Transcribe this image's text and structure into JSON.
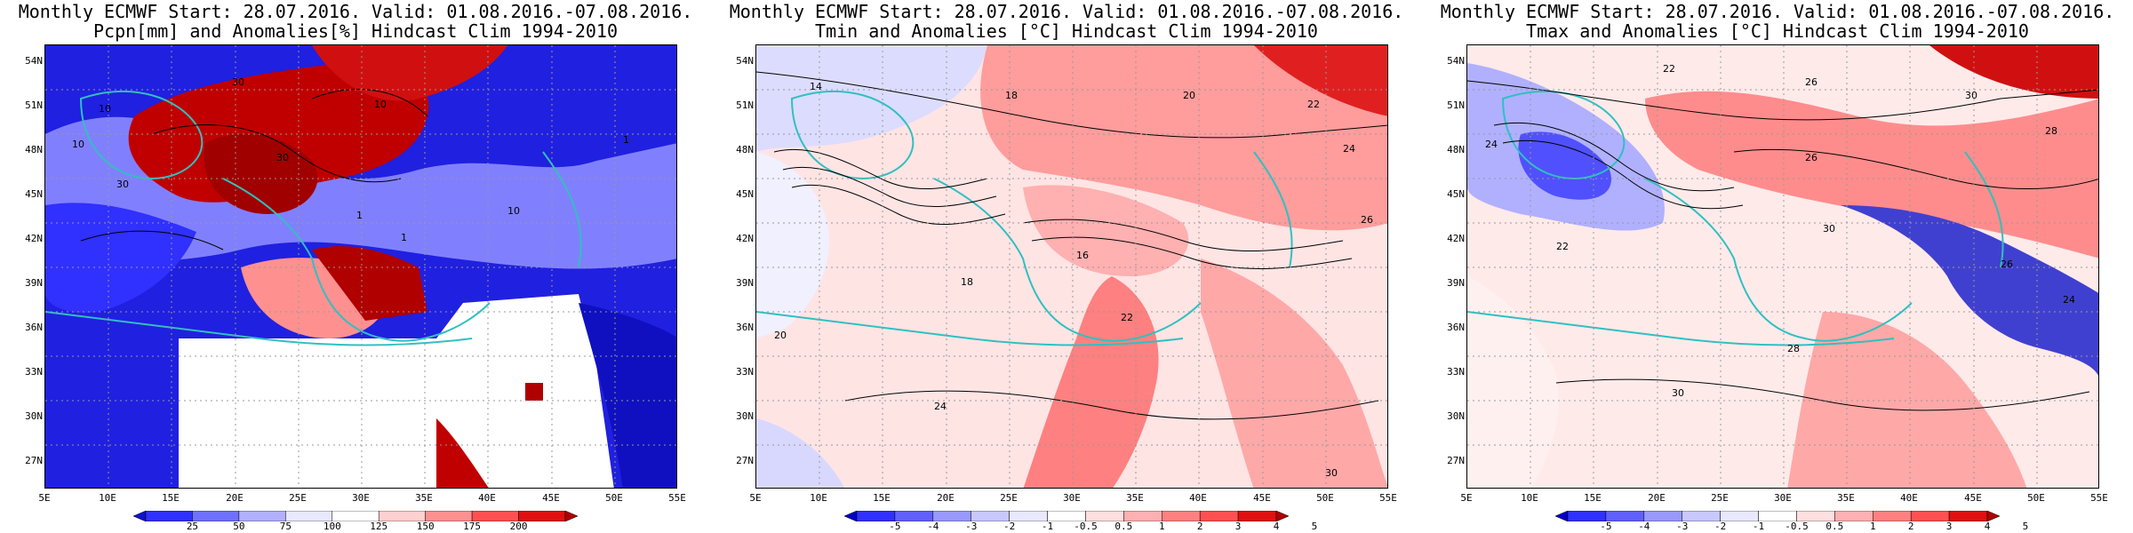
{
  "panels": [
    {
      "title_line1": "Monthly ECMWF Start: 28.07.2016. Valid: 01.08.2016.-07.08.2016.",
      "title_line2": "Pcpn[mm] and Anomalies[%] Hindcast Clim 1994-2010",
      "colorbar_ticks": [
        "25",
        "50",
        "75",
        "100",
        "125",
        "150",
        "175",
        "200"
      ],
      "colorbar_colors": [
        "#1010d0",
        "#3030ff",
        "#7070ff",
        "#b0b0ff",
        "#e8e8ff",
        "#ffffff",
        "#ffd0d0",
        "#ff9090",
        "#ff5050",
        "#e01010",
        "#b00000"
      ],
      "contour_labels": [
        "10",
        "30",
        "10",
        "1",
        "10",
        "30",
        "1",
        "10",
        "30",
        "1"
      ]
    },
    {
      "title_line1": "Monthly ECMWF Start: 28.07.2016. Valid: 01.08.2016.-07.08.2016.",
      "title_line2": "Tmin and Anomalies [°C] Hindcast Clim 1994-2010",
      "colorbar_ticks": [
        "-5",
        "-4",
        "-3",
        "-2",
        "-1",
        "-0.5",
        "0.5",
        "1",
        "2",
        "3",
        "4",
        "5"
      ],
      "colorbar_colors": [
        "#0000c8",
        "#3030ff",
        "#6060ff",
        "#9898ff",
        "#c8c8ff",
        "#e8e8ff",
        "#ffffff",
        "#ffe0e0",
        "#ffb0b0",
        "#ff8080",
        "#ff5050",
        "#e01010",
        "#b00000"
      ],
      "contour_labels": [
        "14",
        "18",
        "20",
        "22",
        "24",
        "16",
        "26",
        "22",
        "20",
        "18",
        "24",
        "30"
      ]
    },
    {
      "title_line1": "Monthly ECMWF Start: 28.07.2016. Valid: 01.08.2016.-07.08.2016.",
      "title_line2": "Tmax and Anomalies [°C] Hindcast Clim 1994-2010",
      "colorbar_ticks": [
        "-5",
        "-4",
        "-3",
        "-2",
        "-1",
        "-0.5",
        "0.5",
        "1",
        "2",
        "3",
        "4",
        "5"
      ],
      "colorbar_colors": [
        "#0000c8",
        "#3030ff",
        "#6060ff",
        "#9898ff",
        "#c8c8ff",
        "#e8e8ff",
        "#ffffff",
        "#ffe0e0",
        "#ffb0b0",
        "#ff8080",
        "#ff5050",
        "#e01010",
        "#b00000"
      ],
      "contour_labels": [
        "22",
        "26",
        "30",
        "28",
        "24",
        "26",
        "30",
        "28",
        "24",
        "30",
        "26",
        "22"
      ]
    }
  ],
  "lat_labels": [
    "54N",
    "51N",
    "48N",
    "45N",
    "42N",
    "39N",
    "36N",
    "33N",
    "30N",
    "27N"
  ],
  "lon_labels": [
    "5E",
    "10E",
    "15E",
    "20E",
    "25E",
    "30E",
    "35E",
    "40E",
    "45E",
    "50E",
    "55E"
  ]
}
